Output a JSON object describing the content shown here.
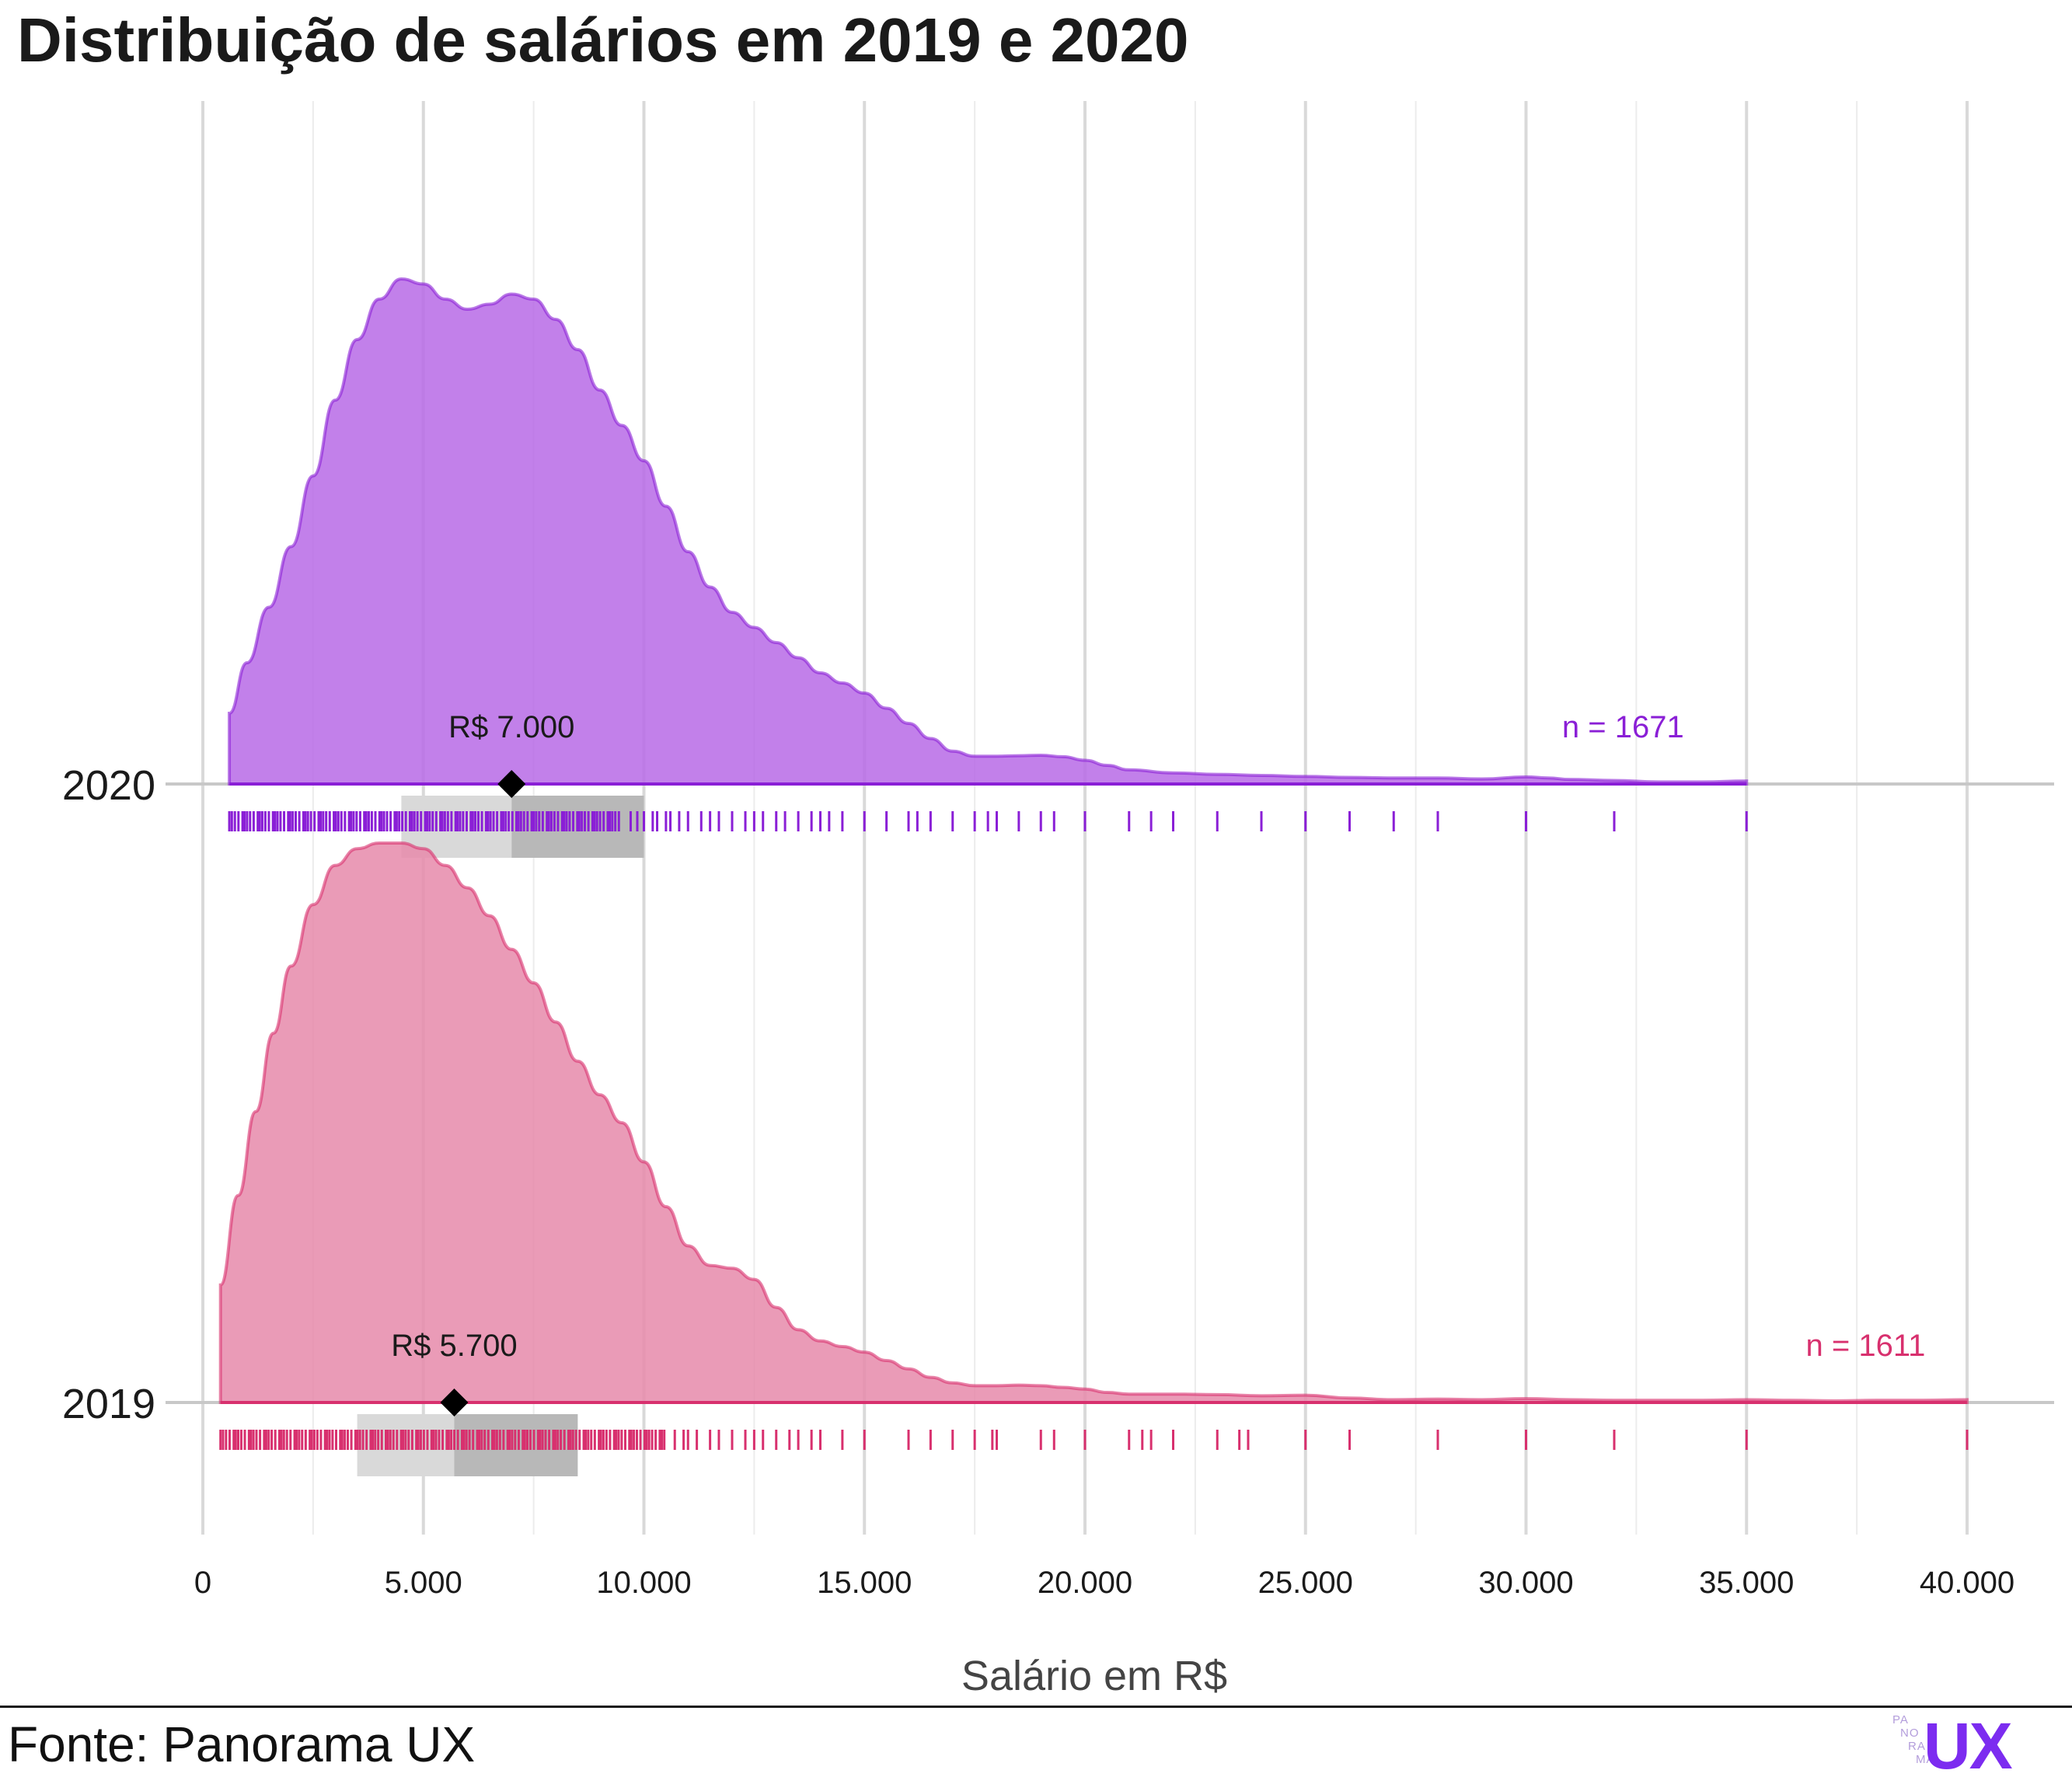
{
  "chart_data": {
    "type": "ridgeline-density",
    "title": "Distribuição de salários em 2019 e 2020",
    "xlabel": "Salário em R$",
    "ylabel": "",
    "xlim": [
      0,
      40000
    ],
    "x_ticks": [
      0,
      5000,
      10000,
      15000,
      20000,
      25000,
      30000,
      35000,
      40000
    ],
    "x_tick_labels": [
      "0",
      "5.000",
      "10.000",
      "15.000",
      "20.000",
      "25.000",
      "30.000",
      "35.000",
      "40.000"
    ],
    "grid": true,
    "series": [
      {
        "name": "2020",
        "color": "#8a1fd6",
        "fill": "#b76ae6",
        "n_label": "n = 1671",
        "median": 7000,
        "median_label": "R$ 7.000",
        "q1": 4500,
        "q3": 10000,
        "density": [
          [
            600,
            0.14
          ],
          [
            1000,
            0.24
          ],
          [
            1500,
            0.35
          ],
          [
            2000,
            0.47
          ],
          [
            2500,
            0.61
          ],
          [
            3000,
            0.76
          ],
          [
            3500,
            0.88
          ],
          [
            4000,
            0.96
          ],
          [
            4500,
            1.0
          ],
          [
            5000,
            0.99
          ],
          [
            5500,
            0.96
          ],
          [
            6000,
            0.94
          ],
          [
            6500,
            0.95
          ],
          [
            7000,
            0.97
          ],
          [
            7500,
            0.96
          ],
          [
            8000,
            0.92
          ],
          [
            8500,
            0.86
          ],
          [
            9000,
            0.78
          ],
          [
            9500,
            0.71
          ],
          [
            10000,
            0.64
          ],
          [
            10500,
            0.55
          ],
          [
            11000,
            0.46
          ],
          [
            11500,
            0.39
          ],
          [
            12000,
            0.34
          ],
          [
            12500,
            0.31
          ],
          [
            13000,
            0.28
          ],
          [
            13500,
            0.25
          ],
          [
            14000,
            0.22
          ],
          [
            14500,
            0.2
          ],
          [
            15000,
            0.18
          ],
          [
            15500,
            0.15
          ],
          [
            16000,
            0.12
          ],
          [
            16500,
            0.09
          ],
          [
            17000,
            0.065
          ],
          [
            17500,
            0.055
          ],
          [
            18000,
            0.055
          ],
          [
            18500,
            0.056
          ],
          [
            19000,
            0.057
          ],
          [
            19500,
            0.054
          ],
          [
            20000,
            0.047
          ],
          [
            20500,
            0.037
          ],
          [
            21000,
            0.028
          ],
          [
            22000,
            0.022
          ],
          [
            23000,
            0.019
          ],
          [
            24000,
            0.017
          ],
          [
            25000,
            0.015
          ],
          [
            26000,
            0.013
          ],
          [
            27000,
            0.012
          ],
          [
            28000,
            0.012
          ],
          [
            29000,
            0.01
          ],
          [
            30000,
            0.014
          ],
          [
            30500,
            0.012
          ],
          [
            31000,
            0.009
          ],
          [
            32000,
            0.007
          ],
          [
            33000,
            0.004
          ],
          [
            34000,
            0.004
          ],
          [
            35000,
            0.006
          ]
        ],
        "rug_min": 600,
        "rug_dense_max": 9500,
        "rug_points": [
          9700,
          9850,
          10000,
          10200,
          10300,
          10500,
          10600,
          10800,
          11000,
          11300,
          11500,
          11700,
          12000,
          12300,
          12500,
          12700,
          13000,
          13200,
          13500,
          13800,
          14000,
          14200,
          14500,
          15000,
          15500,
          16000,
          16200,
          16500,
          17000,
          17500,
          17800,
          18000,
          18500,
          19000,
          19300,
          20000,
          21000,
          21500,
          22000,
          23000,
          24000,
          25000,
          26000,
          27000,
          28000,
          30000,
          32000,
          35000
        ]
      },
      {
        "name": "2019",
        "color": "#d8306e",
        "fill": "#e68aaa",
        "n_label": "n = 1611",
        "median": 5700,
        "median_label": "R$ 5.700",
        "q1": 3500,
        "q3": 8500,
        "density": [
          [
            400,
            0.21
          ],
          [
            800,
            0.37
          ],
          [
            1200,
            0.52
          ],
          [
            1600,
            0.66
          ],
          [
            2000,
            0.78
          ],
          [
            2500,
            0.89
          ],
          [
            3000,
            0.96
          ],
          [
            3500,
            0.99
          ],
          [
            4000,
            1.0
          ],
          [
            4500,
            1.0
          ],
          [
            5000,
            0.99
          ],
          [
            5500,
            0.96
          ],
          [
            6000,
            0.92
          ],
          [
            6500,
            0.87
          ],
          [
            7000,
            0.81
          ],
          [
            7500,
            0.75
          ],
          [
            8000,
            0.68
          ],
          [
            8500,
            0.61
          ],
          [
            9000,
            0.55
          ],
          [
            9500,
            0.5
          ],
          [
            10000,
            0.43
          ],
          [
            10500,
            0.35
          ],
          [
            11000,
            0.28
          ],
          [
            11500,
            0.245
          ],
          [
            12000,
            0.24
          ],
          [
            12500,
            0.22
          ],
          [
            13000,
            0.17
          ],
          [
            13500,
            0.13
          ],
          [
            14000,
            0.11
          ],
          [
            14500,
            0.1
          ],
          [
            15000,
            0.09
          ],
          [
            15500,
            0.075
          ],
          [
            16000,
            0.06
          ],
          [
            16500,
            0.045
          ],
          [
            17000,
            0.035
          ],
          [
            17500,
            0.03
          ],
          [
            18000,
            0.03
          ],
          [
            18500,
            0.031
          ],
          [
            19000,
            0.03
          ],
          [
            19500,
            0.027
          ],
          [
            20000,
            0.024
          ],
          [
            20500,
            0.018
          ],
          [
            21000,
            0.015
          ],
          [
            22000,
            0.015
          ],
          [
            23000,
            0.014
          ],
          [
            24000,
            0.012
          ],
          [
            25000,
            0.013
          ],
          [
            26000,
            0.008
          ],
          [
            27000,
            0.005
          ],
          [
            28000,
            0.006
          ],
          [
            29000,
            0.005
          ],
          [
            30000,
            0.007
          ],
          [
            31000,
            0.005
          ],
          [
            32000,
            0.004
          ],
          [
            33000,
            0.004
          ],
          [
            34000,
            0.004
          ],
          [
            35000,
            0.005
          ],
          [
            36000,
            0.004
          ],
          [
            37000,
            0.003
          ],
          [
            38000,
            0.004
          ],
          [
            39000,
            0.004
          ],
          [
            40000,
            0.005
          ]
        ],
        "rug_min": 400,
        "rug_dense_max": 10500,
        "rug_points": [
          10700,
          10900,
          11000,
          11200,
          11500,
          11700,
          12000,
          12300,
          12500,
          12700,
          13000,
          13300,
          13500,
          13800,
          14000,
          14500,
          15000,
          16000,
          16500,
          17000,
          17500,
          17900,
          18000,
          19000,
          19300,
          20000,
          21000,
          21300,
          21500,
          22000,
          23000,
          23500,
          23700,
          25000,
          26000,
          28000,
          30000,
          32000,
          35000,
          40000
        ]
      }
    ]
  },
  "source_label": "Fonte: Panorama UX",
  "logo": {
    "small_lines": [
      "PA",
      "NO",
      "RA",
      "MA"
    ],
    "big": "UX"
  }
}
